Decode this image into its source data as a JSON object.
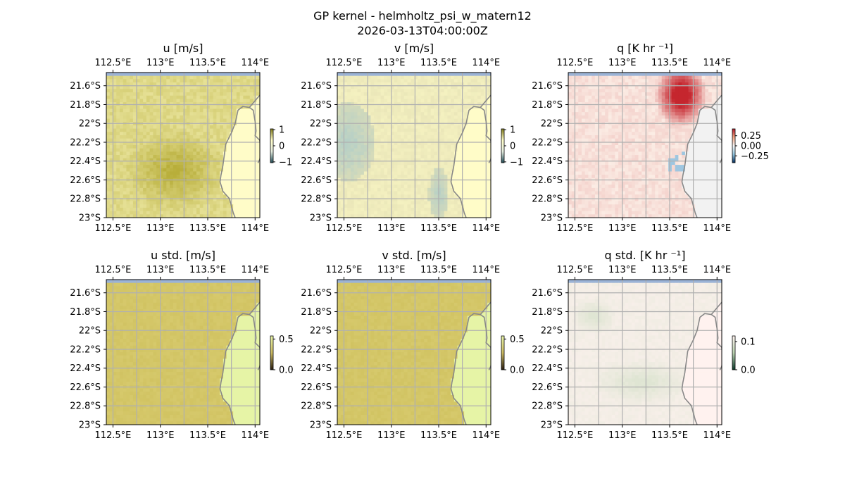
{
  "figure": {
    "title_line1": "GP kernel - helmholtz_psi_w_matern12",
    "title_line2": "2026-03-13T04:00:00Z"
  },
  "axes": {
    "x_ticks": [
      "112.5°E",
      "113°E",
      "113.5°E",
      "114°E"
    ],
    "x_tick_values": [
      112.5,
      113.0,
      113.5,
      114.0
    ],
    "y_ticks": [
      "21.6°S",
      "21.8°S",
      "22°S",
      "22.2°S",
      "22.4°S",
      "22.6°S",
      "22.8°S",
      "23°S"
    ],
    "y_tick_values": [
      -21.6,
      -21.8,
      -22.0,
      -22.2,
      -22.4,
      -22.6,
      -22.8,
      -23.0
    ],
    "x_range": [
      112.43,
      114.05
    ],
    "y_range": [
      -23.0,
      -21.46
    ],
    "grid": true
  },
  "panels": [
    {
      "key": "u",
      "title": "u [m/s]",
      "cbar": {
        "labels": [
          "1",
          "0",
          "−1"
        ],
        "values": [
          1,
          0,
          -1
        ],
        "range": [
          -1.05,
          1.05
        ],
        "colors": [
          "#1f4a55",
          "#e6eee0",
          "#fffdc8",
          "#7f7a1a"
        ]
      }
    },
    {
      "key": "v",
      "title": "v [m/s]",
      "cbar": {
        "labels": [
          "1",
          "0",
          "−1"
        ],
        "values": [
          1,
          0,
          -1
        ],
        "range": [
          -1.05,
          1.05
        ],
        "colors": [
          "#1f4a55",
          "#e6eee0",
          "#fffdc8",
          "#7f7a1a"
        ]
      }
    },
    {
      "key": "q",
      "title": "q [K hr ⁻¹]",
      "cbar": {
        "labels": [
          "0.25",
          "0.00",
          "−0.25"
        ],
        "values": [
          0.25,
          0,
          -0.25
        ],
        "range": [
          -0.42,
          0.42
        ],
        "colors": [
          "#053061",
          "#92c5de",
          "#f7f7f7",
          "#f4a582",
          "#b2182b"
        ]
      }
    },
    {
      "key": "u_std",
      "title": "u std. [m/s]",
      "cbar": {
        "labels": [
          "0.5",
          "0.0"
        ],
        "values": [
          0.5,
          0
        ],
        "range": [
          0,
          0.55
        ],
        "colors": [
          "#2a1e10",
          "#c9b860",
          "#e8f4a8"
        ]
      }
    },
    {
      "key": "v_std",
      "title": "v std. [m/s]",
      "cbar": {
        "labels": [
          "0.5",
          "0.0"
        ],
        "values": [
          0.5,
          0
        ],
        "range": [
          0,
          0.55
        ],
        "colors": [
          "#2a1e10",
          "#c9b860",
          "#e8f4a8"
        ]
      }
    },
    {
      "key": "q_std",
      "title": "q std. [K hr ⁻¹]",
      "cbar": {
        "labels": [
          "0.1",
          "0.0"
        ],
        "values": [
          0.1,
          0
        ],
        "range": [
          0,
          0.12
        ],
        "colors": [
          "#0a3a2a",
          "#b9d2b0",
          "#fff4f0"
        ]
      }
    }
  ],
  "colors": {
    "coastline": "#888888",
    "gridline": "#b0b0b0",
    "nodata_border": "#9bb3d6",
    "u_ocean": "#d6cc72",
    "u_ocean_dark": "#b8ae3a",
    "u_land": "#fffcc8",
    "v_ocean": "#e4e0b4",
    "v_ocean_teal": "#b7d0c6",
    "v_land": "#fffcc8",
    "q_base": "#fbece4",
    "q_hot": "#c5262e",
    "q_land": "#f2f2f2",
    "q_cold": "#9ec6e0",
    "std_ocean": "#d6c96c",
    "std_land": "#e6f4a6",
    "q_std_base": "#f7efe9",
    "q_std_green": "#dfe5d3",
    "q_std_land": "#fff2ef"
  },
  "chart_data": [
    {
      "type": "heatmap",
      "title": "u [m/s]",
      "x_domain": [
        112.43,
        114.05
      ],
      "y_domain": [
        -23.0,
        -21.46
      ],
      "xlabel": "",
      "ylabel": "",
      "clim": [
        -1,
        1
      ],
      "legend_position": "right"
    },
    {
      "type": "heatmap",
      "title": "v [m/s]",
      "x_domain": [
        112.43,
        114.05
      ],
      "y_domain": [
        -23.0,
        -21.46
      ],
      "xlabel": "",
      "ylabel": "",
      "clim": [
        -1,
        1
      ],
      "legend_position": "right"
    },
    {
      "type": "heatmap",
      "title": "q [K hr ⁻¹]",
      "x_domain": [
        112.43,
        114.05
      ],
      "y_domain": [
        -23.0,
        -21.46
      ],
      "xlabel": "",
      "ylabel": "",
      "clim": [
        -0.4,
        0.4
      ],
      "legend_position": "right"
    },
    {
      "type": "heatmap",
      "title": "u std. [m/s]",
      "x_domain": [
        112.43,
        114.05
      ],
      "y_domain": [
        -23.0,
        -21.46
      ],
      "xlabel": "",
      "ylabel": "",
      "clim": [
        0,
        0.5
      ],
      "legend_position": "right"
    },
    {
      "type": "heatmap",
      "title": "v std. [m/s]",
      "x_domain": [
        112.43,
        114.05
      ],
      "y_domain": [
        -23.0,
        -21.46
      ],
      "xlabel": "",
      "ylabel": "",
      "clim": [
        0,
        0.5
      ],
      "legend_position": "right"
    },
    {
      "type": "heatmap",
      "title": "q std. [K hr ⁻¹]",
      "x_domain": [
        112.43,
        114.05
      ],
      "y_domain": [
        -23.0,
        -21.46
      ],
      "xlabel": "",
      "ylabel": "",
      "clim": [
        0,
        0.1
      ],
      "legend_position": "right"
    }
  ]
}
